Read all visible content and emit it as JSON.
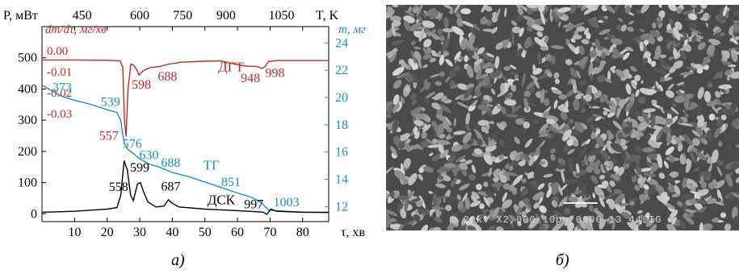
{
  "chart_data": {
    "type": "line",
    "title": "",
    "xlabel": "τ, хв",
    "x_top_label": "T, K",
    "x_ticks": [
      10,
      20,
      30,
      40,
      50,
      60,
      70,
      80
    ],
    "x_top_ticks": [
      450,
      600,
      750,
      900,
      1050
    ],
    "xlim": [
      0,
      88
    ],
    "axes": {
      "left_outer": {
        "label": "P, мВт",
        "ticks": [
          0,
          100,
          200,
          300,
          400,
          500
        ],
        "color": "#000000",
        "ylim": [
          -25,
          600
        ]
      },
      "left_inner": {
        "label": "dm/dτ, мг/хв",
        "ticks": [
          "0.00",
          "-0.01",
          "-0.02",
          "-0.03"
        ],
        "color": "#c0282d"
      },
      "right": {
        "label": "m, мг",
        "ticks": [
          12,
          14,
          16,
          18,
          20,
          22,
          24
        ],
        "color": "#1a8fc0",
        "ylim": [
          10.9,
          25.2
        ]
      }
    },
    "series": [
      {
        "name": "ДГТ",
        "color": "#c0282d",
        "axis": "left_outer",
        "points": [
          [
            0,
            493
          ],
          [
            10,
            493
          ],
          [
            20,
            492
          ],
          [
            24,
            490
          ],
          [
            24.8,
            470
          ],
          [
            25.3,
            300
          ],
          [
            25.8,
            248
          ],
          [
            26.4,
            400
          ],
          [
            27.3,
            480
          ],
          [
            28,
            478
          ],
          [
            29,
            463
          ],
          [
            29.8,
            445
          ],
          [
            31,
            458
          ],
          [
            33,
            468
          ],
          [
            36,
            472
          ],
          [
            39,
            480
          ],
          [
            43,
            486
          ],
          [
            50,
            489
          ],
          [
            55,
            490
          ],
          [
            58,
            482
          ],
          [
            62,
            474
          ],
          [
            66,
            472
          ],
          [
            67.5,
            466
          ],
          [
            68.3,
            470
          ],
          [
            69.5,
            488
          ],
          [
            72,
            491
          ],
          [
            80,
            491
          ],
          [
            88,
            491
          ]
        ],
        "annotations": [
          {
            "x": 30.5,
            "label": "598"
          },
          {
            "x": 38.5,
            "label": "688"
          },
          {
            "x": 64,
            "label": "948"
          },
          {
            "x": 71.5,
            "label": "998"
          }
        ]
      },
      {
        "name": "ТГ",
        "color": "#1a8fc0",
        "axis": "right",
        "points": [
          [
            0,
            20.9
          ],
          [
            3,
            20.5
          ],
          [
            6,
            20.1
          ],
          [
            10,
            19.8
          ],
          [
            15,
            19.5
          ],
          [
            20,
            19.1
          ],
          [
            23,
            18.9
          ],
          [
            24.2,
            18.3
          ],
          [
            24.8,
            17.3
          ],
          [
            25.3,
            16.6
          ],
          [
            26.3,
            16.2
          ],
          [
            28,
            15.9
          ],
          [
            30,
            15.5
          ],
          [
            33,
            15.1
          ],
          [
            36,
            14.9
          ],
          [
            40,
            14.5
          ],
          [
            45,
            14.2
          ],
          [
            50,
            13.8
          ],
          [
            55,
            13.4
          ],
          [
            60,
            13.0
          ],
          [
            64,
            12.7
          ],
          [
            67,
            12.35
          ],
          [
            68.5,
            12.0
          ],
          [
            69.5,
            11.75
          ],
          [
            72,
            11.7
          ],
          [
            80,
            11.6
          ],
          [
            88,
            11.55
          ]
        ],
        "annotations": [
          {
            "x": 6.2,
            "label": "373"
          },
          {
            "x": 21,
            "label": "539"
          },
          {
            "x": 27.7,
            "label": "576"
          },
          {
            "x": 32.8,
            "label": "630"
          },
          {
            "x": 39.5,
            "label": "688"
          },
          {
            "x": 58,
            "label": "851"
          },
          {
            "x": 75,
            "label": "1003"
          }
        ]
      },
      {
        "name": "ДСК",
        "color": "#000000",
        "axis": "left_outer",
        "points": [
          [
            0,
            5
          ],
          [
            10,
            8
          ],
          [
            20,
            15
          ],
          [
            23,
            20
          ],
          [
            24.2,
            60
          ],
          [
            25.2,
            170
          ],
          [
            26.2,
            140
          ],
          [
            27.2,
            60
          ],
          [
            28,
            42
          ],
          [
            29.3,
            95
          ],
          [
            30.2,
            100
          ],
          [
            31.2,
            70
          ],
          [
            32.5,
            38
          ],
          [
            35,
            22
          ],
          [
            37.5,
            25
          ],
          [
            38.8,
            45
          ],
          [
            39.8,
            35
          ],
          [
            42,
            22
          ],
          [
            50,
            15
          ],
          [
            60,
            10
          ],
          [
            65,
            7
          ],
          [
            68,
            5
          ],
          [
            69,
            -2
          ],
          [
            70.2,
            15
          ],
          [
            72,
            8
          ],
          [
            80,
            5
          ],
          [
            88,
            5
          ]
        ],
        "annotations": [
          {
            "x": 23.5,
            "label": "558"
          },
          {
            "x": 30,
            "label": "599"
          },
          {
            "x": 39.5,
            "label": "687"
          },
          {
            "x": 65,
            "label": "997"
          }
        ]
      }
    ],
    "extra_labels": [
      {
        "label": "557",
        "color": "#c0282d"
      }
    ],
    "legend": "none"
  },
  "captions": {
    "left": "а)",
    "right": "б)"
  },
  "sem_image": {
    "info_text": "20kV  X2,000  10µm  0000 13 44  IG"
  }
}
